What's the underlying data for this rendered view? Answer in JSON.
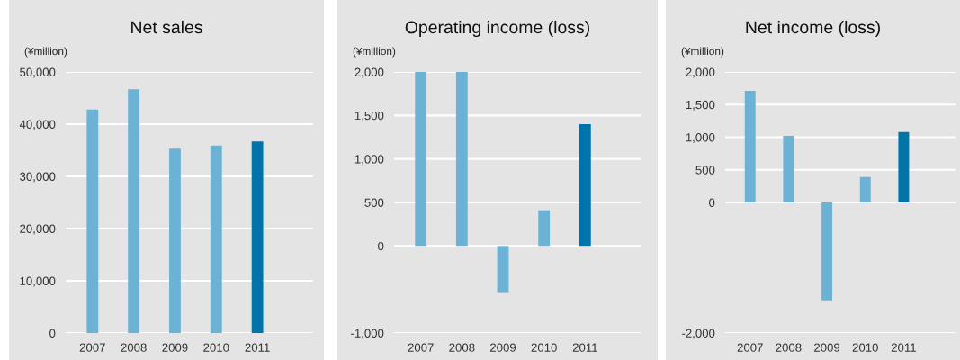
{
  "chart_data": [
    {
      "type": "bar",
      "title": "Net sales",
      "ylabel": "(¥million)",
      "categories": [
        "2007",
        "2008",
        "2009",
        "2010",
        "2011"
      ],
      "values": [
        42800,
        46700,
        35300,
        35900,
        36700
      ],
      "colors": [
        "#6cb2d4",
        "#6cb2d4",
        "#6cb2d4",
        "#6cb2d4",
        "#0073a9"
      ],
      "ylim": [
        0,
        50000
      ],
      "yticks": [
        {
          "value": 0,
          "label": "0"
        },
        {
          "value": 10000,
          "label": "10,000"
        },
        {
          "value": 20000,
          "label": "20,000"
        },
        {
          "value": 30000,
          "label": "30,000"
        },
        {
          "value": 40000,
          "label": "40,000"
        },
        {
          "value": 50000,
          "label": "50,000"
        }
      ],
      "grid": "y"
    },
    {
      "type": "bar",
      "title": "Operating income (loss)",
      "ylabel": "(¥million)",
      "categories": [
        "2007",
        "2008",
        "2009",
        "2010",
        "2011"
      ],
      "values": [
        2000,
        2000,
        -530,
        410,
        1400
      ],
      "colors": [
        "#6cb2d4",
        "#6cb2d4",
        "#6cb2d4",
        "#6cb2d4",
        "#0073a9"
      ],
      "ylim": [
        -1000,
        2000
      ],
      "yticks": [
        {
          "value": -1000,
          "label": "-1,000"
        },
        0,
        500,
        {
          "value": 1000,
          "label": "1,000"
        },
        {
          "value": 1500,
          "label": "1,500"
        },
        {
          "value": 2000,
          "label": "2,000"
        }
      ],
      "grid": "y"
    },
    {
      "type": "bar",
      "title": "Net income (loss)",
      "ylabel": "(¥million)",
      "categories": [
        "2007",
        "2008",
        "2009",
        "2010",
        "2011"
      ],
      "values": [
        1710,
        1020,
        -1500,
        390,
        1080
      ],
      "colors": [
        "#6cb2d4",
        "#6cb2d4",
        "#6cb2d4",
        "#6cb2d4",
        "#0073a9"
      ],
      "ylim": [
        -2000,
        2000
      ],
      "yticks": [
        {
          "value": -2000,
          "label": "-2,000"
        },
        0,
        500,
        {
          "value": 1000,
          "label": "1,000"
        },
        {
          "value": 1500,
          "label": "1,500"
        },
        {
          "value": 2000,
          "label": "2,000"
        }
      ],
      "grid": "y"
    }
  ]
}
